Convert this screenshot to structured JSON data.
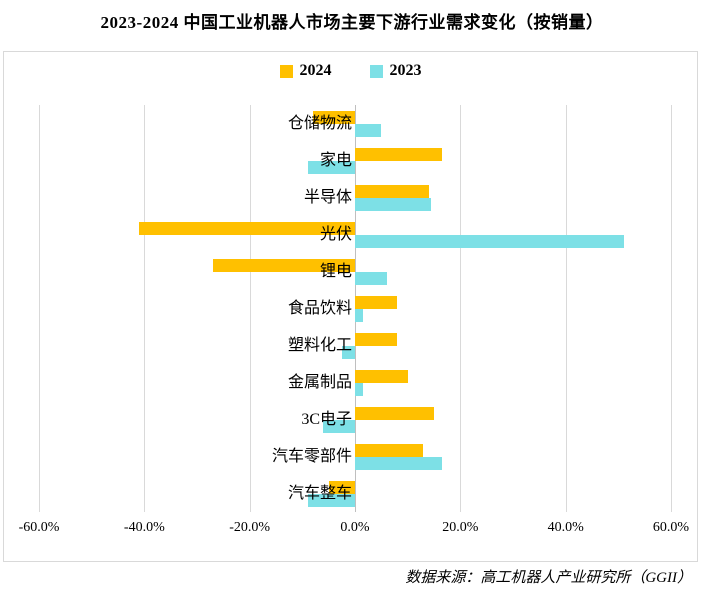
{
  "title": "2023-2024 中国工业机器人市场主要下游行业需求变化（按销量）",
  "source": "数据来源：高工机器人产业研究所（GGII）",
  "colors": {
    "series_2024": "#FFC000",
    "series_2023": "#7DE0E6",
    "gridline": "#D9D9D9",
    "zero_line": "#BFBFBF",
    "box_border": "#D9D9D9",
    "text": "#000000"
  },
  "chart_data": {
    "type": "bar",
    "orientation": "horizontal",
    "title": "2023-2024 中国工业机器人市场主要下游行业需求变化（按销量）",
    "categories": [
      "仓储物流",
      "家电",
      "半导体",
      "光伏",
      "锂电",
      "食品饮料",
      "塑料化工",
      "金属制品",
      "3C电子",
      "汽车零部件",
      "汽车整车"
    ],
    "series": [
      {
        "name": "2024",
        "color": "#FFC000",
        "values": [
          -8,
          16.5,
          14,
          -41,
          -27,
          8,
          8,
          10,
          15,
          13,
          -5
        ]
      },
      {
        "name": "2023",
        "color": "#7DE0E6",
        "values": [
          5,
          -9,
          14.5,
          51,
          6,
          1.5,
          -2.5,
          1.5,
          -6,
          16.5,
          -9
        ]
      }
    ],
    "value_unit": "%",
    "xlim": [
      -60,
      60
    ],
    "x_ticks": [
      -60,
      -40,
      -20,
      0,
      20,
      40,
      60
    ],
    "x_tick_labels": [
      "-60.0%",
      "-40.0%",
      "-20.0%",
      "0.0%",
      "20.0%",
      "40.0%",
      "60.0%"
    ],
    "grid": "vertical",
    "legend_position": "top-center"
  }
}
